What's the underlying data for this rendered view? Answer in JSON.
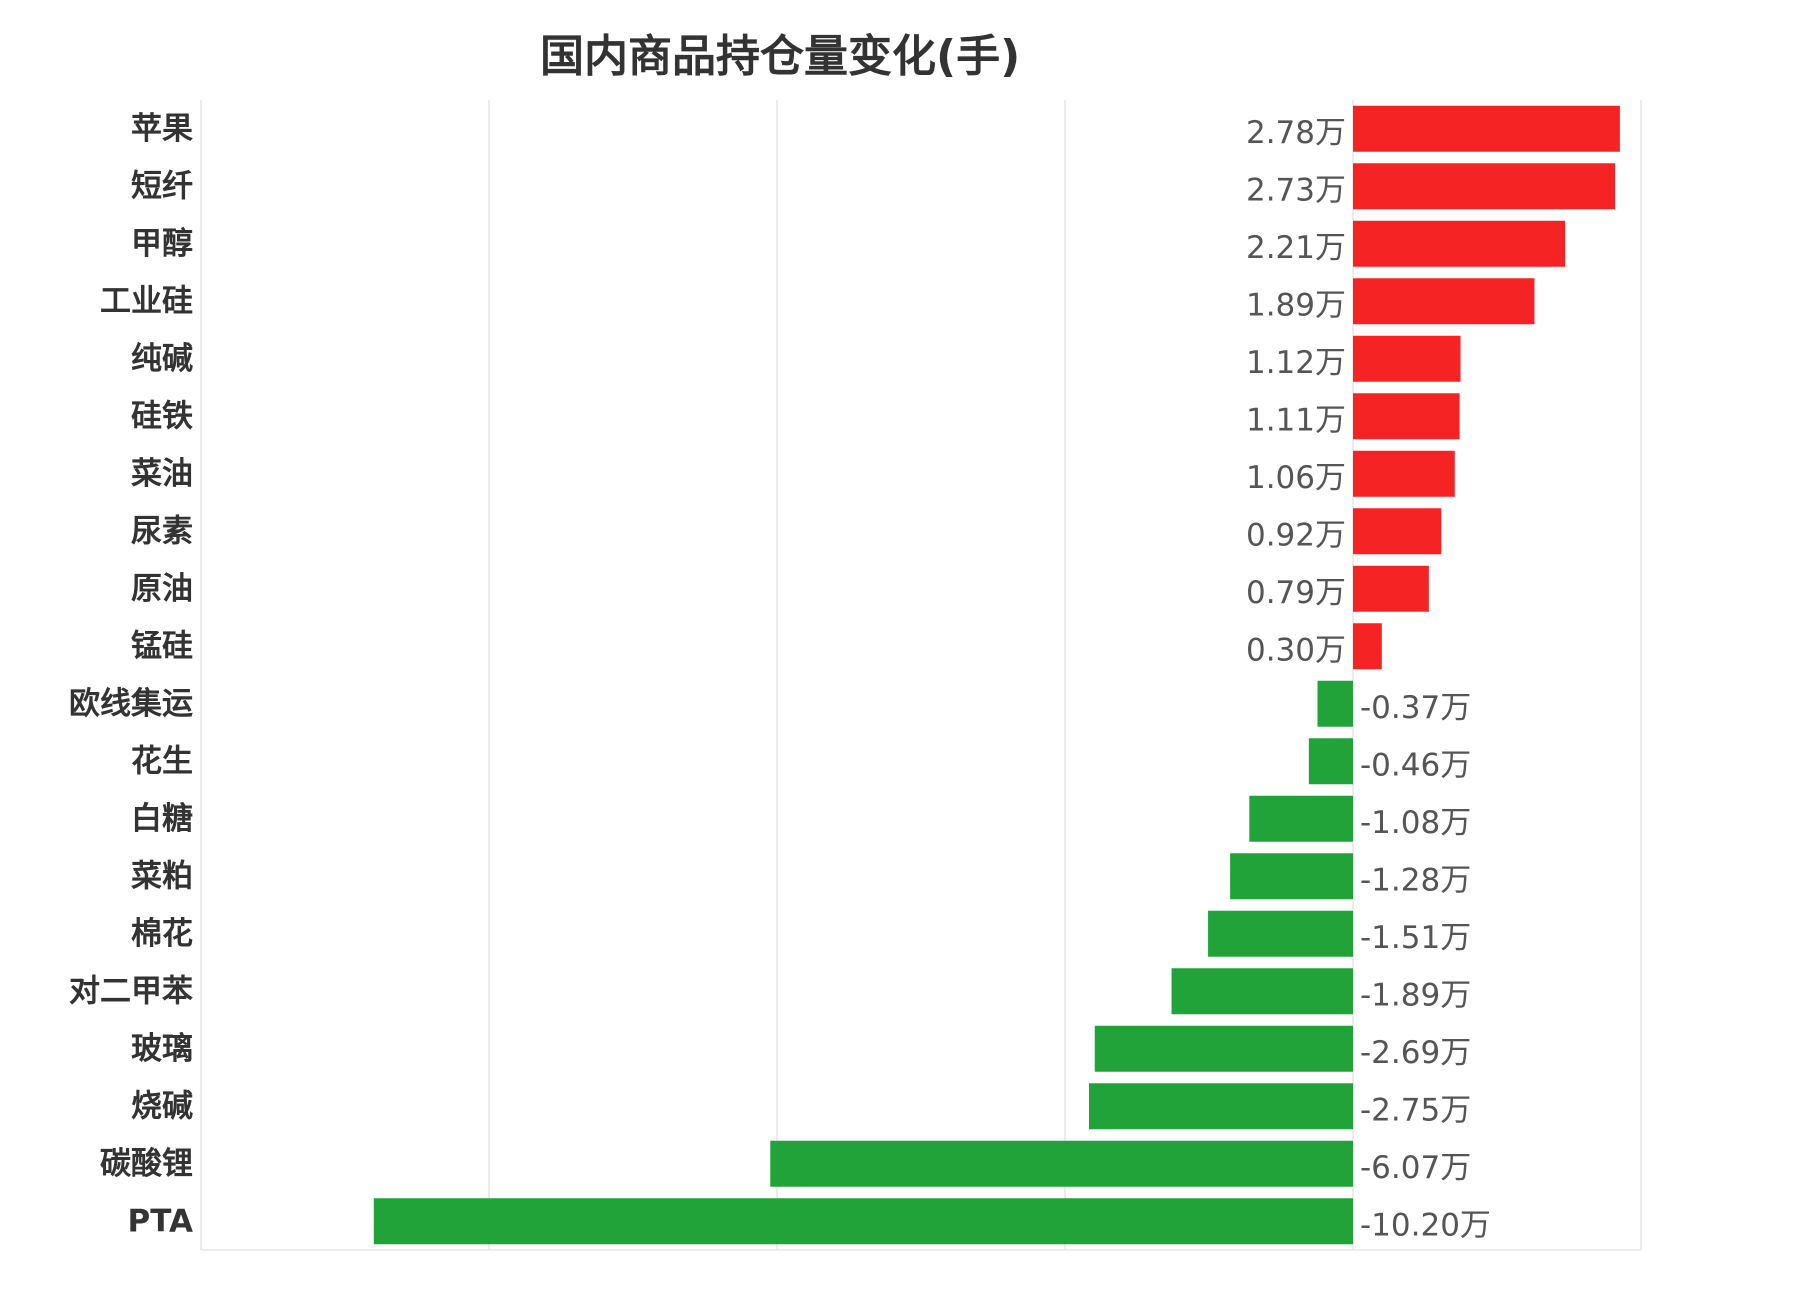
{
  "chart_data": {
    "type": "bar",
    "orientation": "horizontal",
    "title": "国内商品持仓量变化(手)",
    "xlabel": "",
    "ylabel": "",
    "unit": "万",
    "xlim": [
      -12,
      3
    ],
    "grid": true,
    "categories": [
      "苹果",
      "短纤",
      "甲醇",
      "工业硅",
      "纯碱",
      "硅铁",
      "菜油",
      "尿素",
      "原油",
      "锰硅",
      "欧线集运",
      "花生",
      "白糖",
      "菜粕",
      "棉花",
      "对二甲苯",
      "玻璃",
      "烧碱",
      "碳酸锂",
      "PTA"
    ],
    "values": [
      2.78,
      2.73,
      2.21,
      1.89,
      1.12,
      1.11,
      1.06,
      0.92,
      0.79,
      0.3,
      -0.37,
      -0.46,
      -1.08,
      -1.28,
      -1.51,
      -1.89,
      -2.69,
      -2.75,
      -6.07,
      -10.2
    ],
    "value_labels": [
      "2.78万",
      "2.73万",
      "2.21万",
      "1.89万",
      "1.12万",
      "1.11万",
      "1.06万",
      "0.92万",
      "0.79万",
      "0.30万",
      "-0.37万",
      "-0.46万",
      "-1.08万",
      "-1.28万",
      "-1.51万",
      "-1.89万",
      "-2.69万",
      "-2.75万",
      "-6.07万",
      "-10.20万"
    ],
    "colors": {
      "positive": "#f52323",
      "negative": "#21a33a",
      "grid": "#e6e6e6",
      "text": "#333333"
    }
  }
}
